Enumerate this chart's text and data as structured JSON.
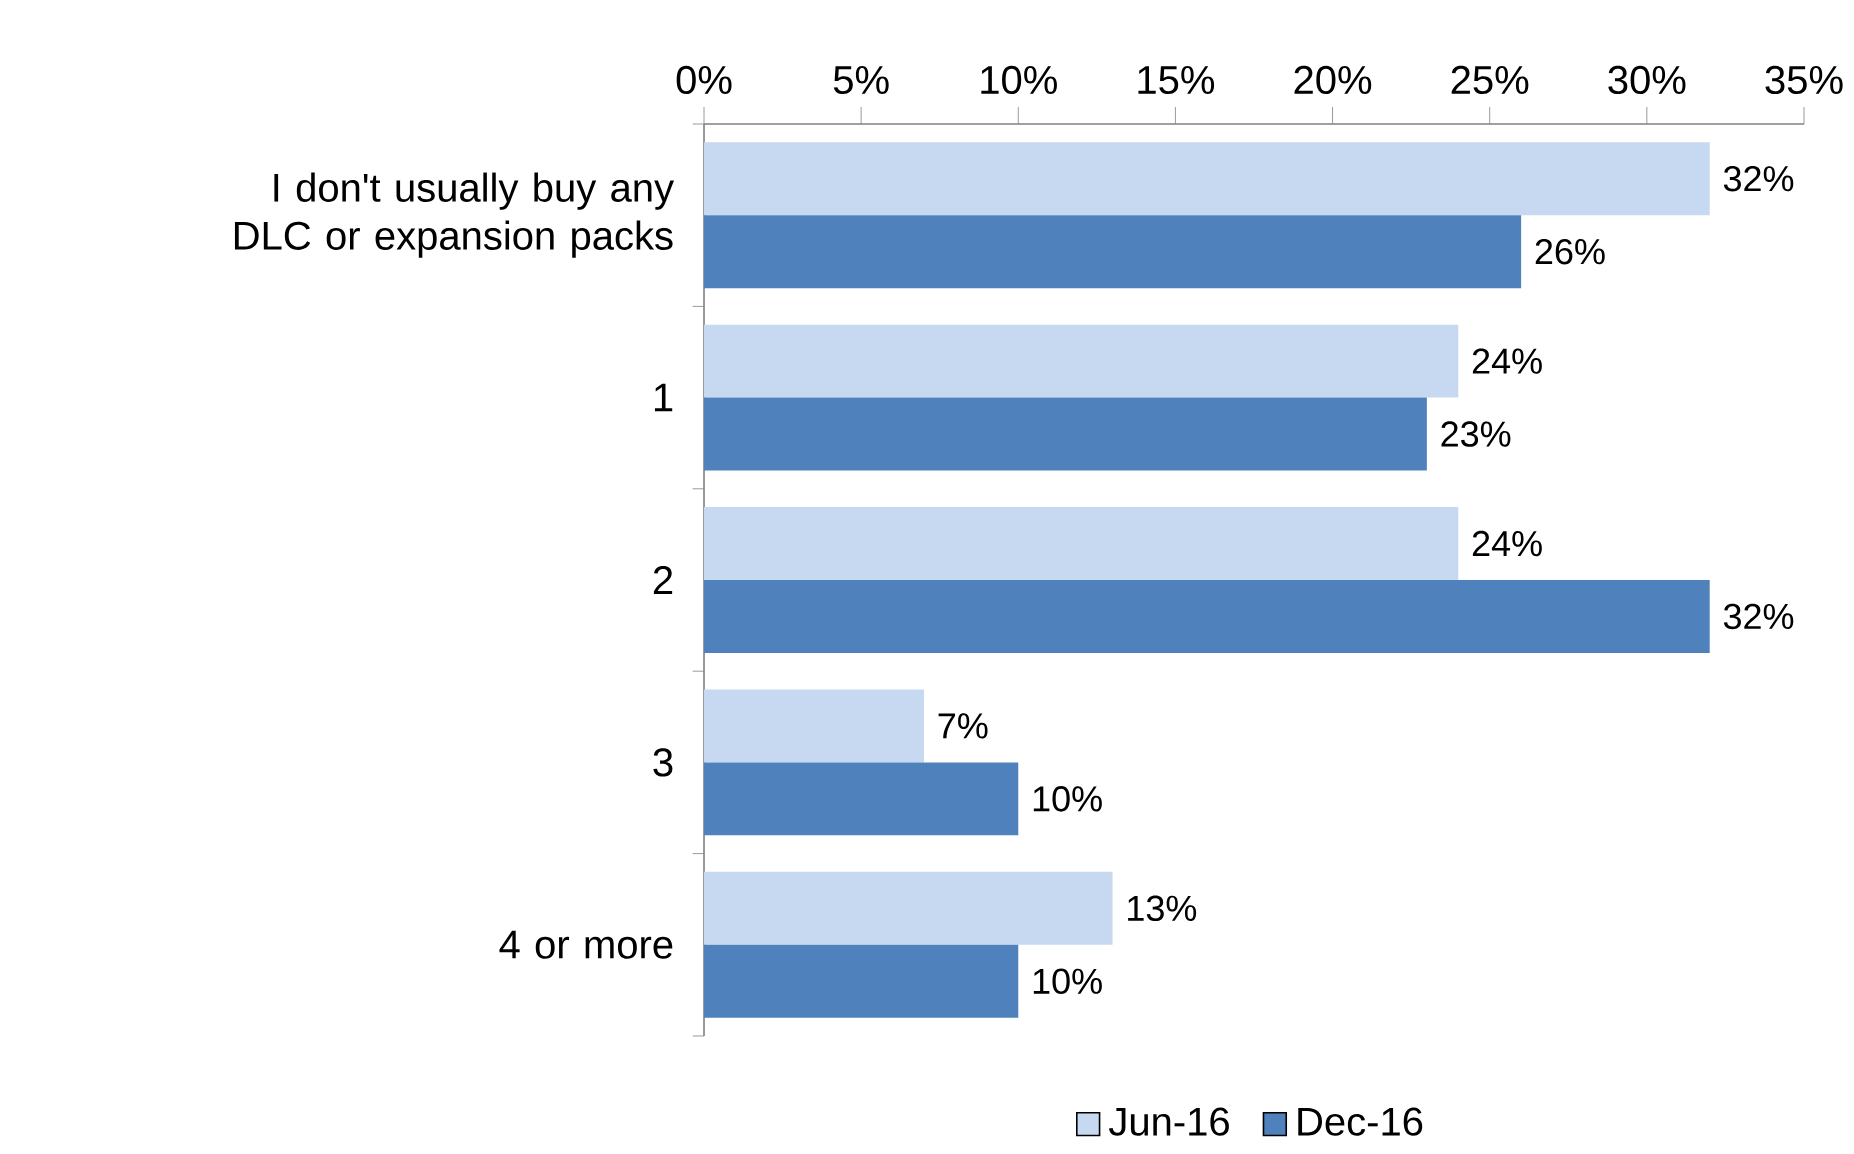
{
  "chart_data": {
    "type": "bar",
    "orientation": "horizontal",
    "categories": [
      "I don't usually buy any DLC or expansion packs",
      "1",
      "2",
      "3",
      "4 or more"
    ],
    "series": [
      {
        "name": "Jun-16",
        "color": "#c6d9f1",
        "values": [
          32,
          24,
          24,
          7,
          13
        ],
        "value_labels": [
          "32%",
          "24%",
          "24%",
          "7%",
          "13%"
        ]
      },
      {
        "name": "Dec-16",
        "color": "#4f81bd",
        "values": [
          26,
          23,
          32,
          10,
          10
        ],
        "value_labels": [
          "26%",
          "23%",
          "32%",
          "10%",
          "10%"
        ]
      }
    ],
    "xlim": [
      0,
      35
    ],
    "xticks": [
      {
        "value": 0,
        "label": "0%"
      },
      {
        "value": 5,
        "label": "5%"
      },
      {
        "value": 10,
        "label": "10%"
      },
      {
        "value": 15,
        "label": "15%"
      },
      {
        "value": 20,
        "label": "20%"
      },
      {
        "value": 25,
        "label": "25%"
      },
      {
        "value": 30,
        "label": "30%"
      },
      {
        "value": 35,
        "label": "35%"
      }
    ],
    "legend": "bottom"
  }
}
